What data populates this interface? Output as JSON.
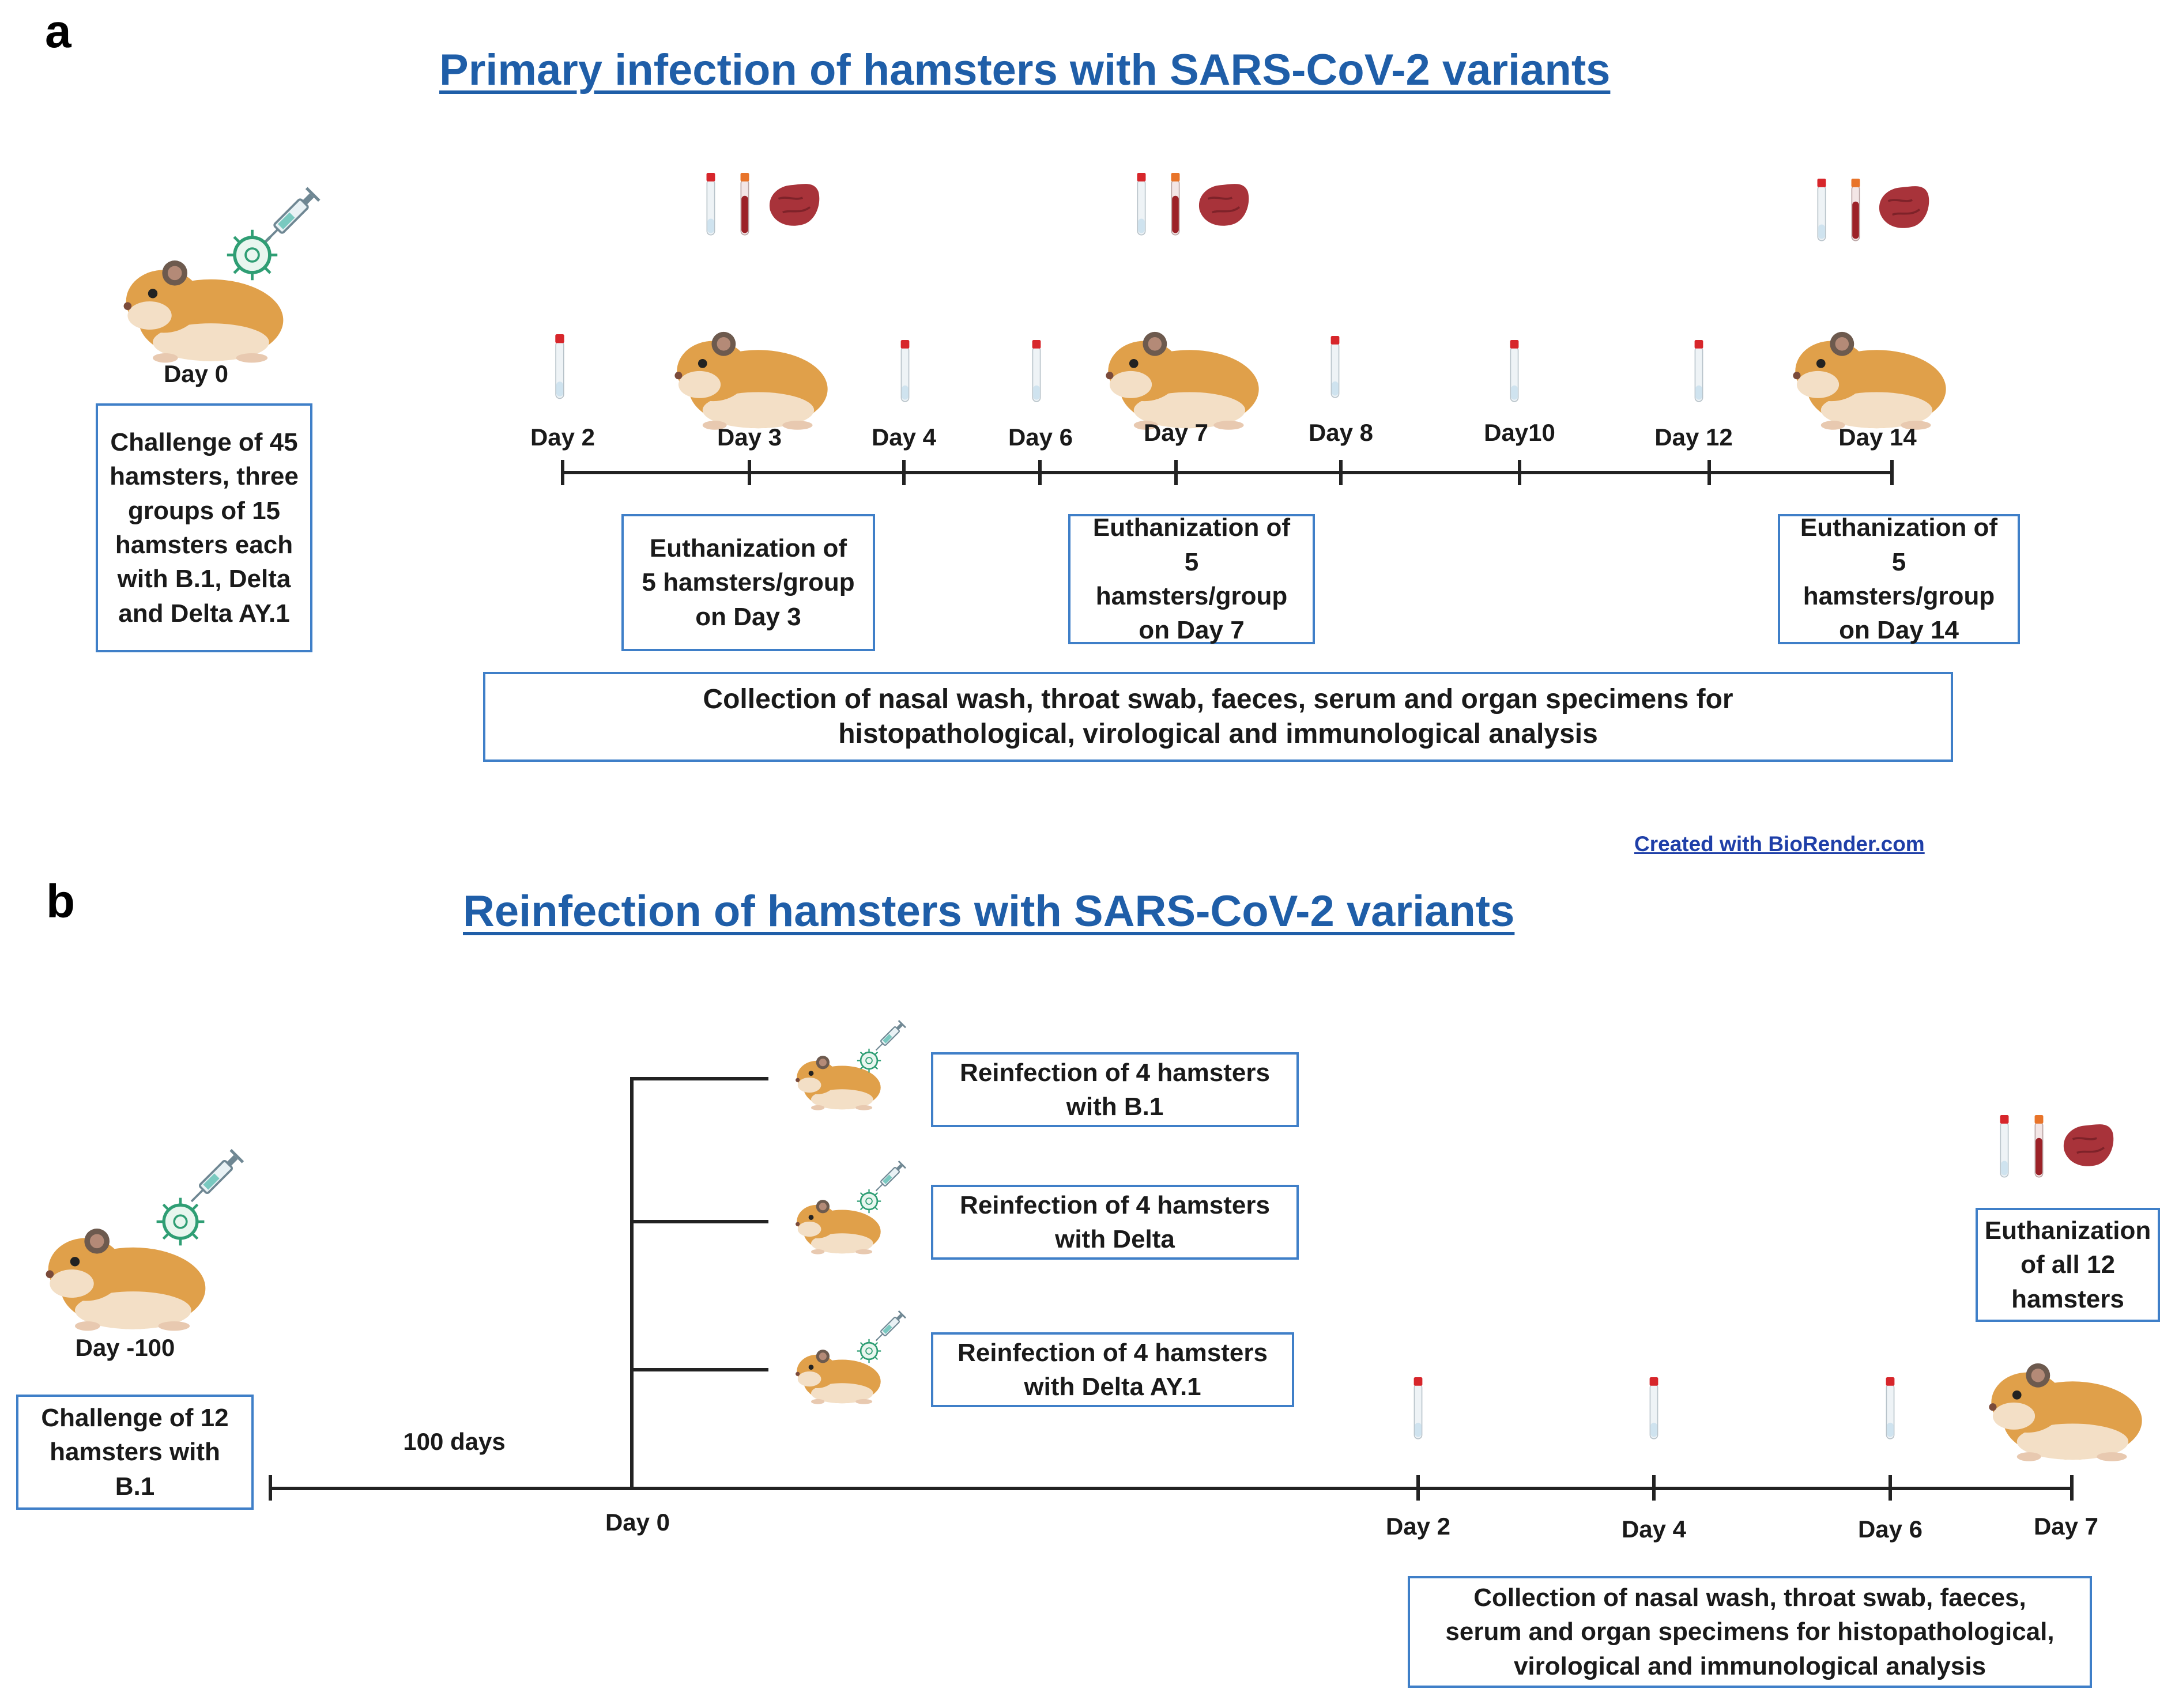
{
  "panel_a": {
    "letter": "a",
    "title": "Primary infection of hamsters with SARS-CoV-2 variants",
    "start_day": "Day 0",
    "challenge_box": "Challenge of 45 hamsters, three groups of 15 hamsters each with B.1, Delta and Delta AY.1",
    "timeline_days": [
      "Day 2",
      "Day 3",
      "Day 4",
      "Day 6",
      "Day 7",
      "Day 8",
      "Day10",
      "Day 12",
      "Day 14"
    ],
    "euthanasia_boxes": [
      "Euthanization of 5 hamsters/group on Day 3",
      "Euthanization of 5 hamsters/group on Day 7",
      "Euthanization of 5 hamsters/group on Day 14"
    ],
    "collection_box": "Collection of nasal wash, throat swab, faeces, serum and organ specimens for histopathological, virological and immunological analysis",
    "credit": "Created with BioRender.com"
  },
  "panel_b": {
    "letter": "b",
    "title": "Reinfection of hamsters with SARS-CoV-2 variants",
    "start_day": "Day -100",
    "challenge_box": "Challenge of 12 hamsters with B.1",
    "interval_label": "100 days",
    "reinfection_boxes": [
      "Reinfection of 4 hamsters with B.1",
      "Reinfection of 4 hamsters with Delta",
      "Reinfection of 4 hamsters with Delta AY.1"
    ],
    "timeline_days": [
      "Day 0",
      "Day 2",
      "Day 4",
      "Day 6",
      "Day 7"
    ],
    "euthanasia_box": "Euthanization of all 12 hamsters",
    "collection_box": "Collection of nasal wash, throat swab, faeces, serum and organ specimens for histopathological, virological and immunological analysis"
  },
  "icons": [
    "hamster-icon",
    "syringe-icon",
    "virus-icon",
    "swab-tube-icon",
    "blood-tube-icon",
    "organ-icon"
  ],
  "colors": {
    "title": "#1f5ea8",
    "box_border": "#3f7fc8",
    "hamster": "#e0a04a",
    "tube_cap": "#d7262b",
    "organ": "#a8333a",
    "virus": "#2f9e74"
  }
}
